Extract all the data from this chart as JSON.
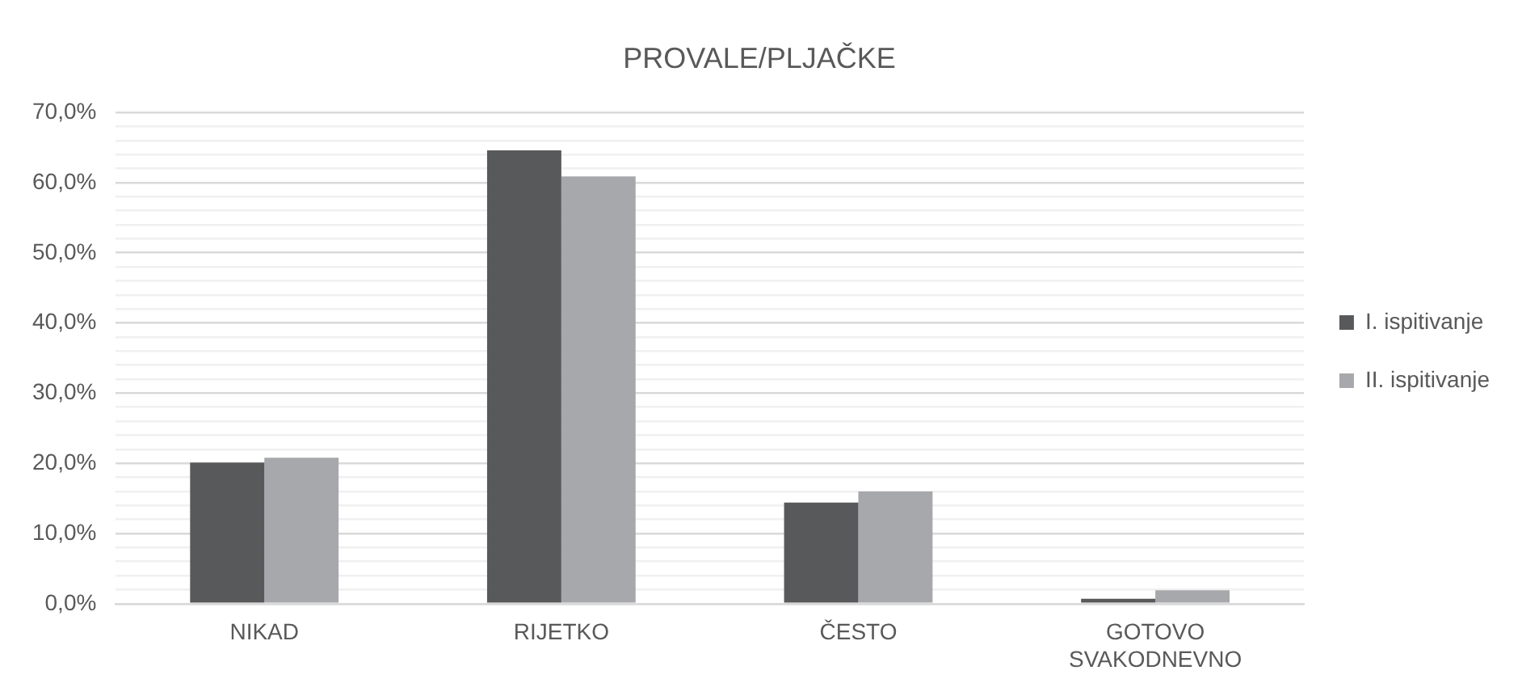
{
  "chart_data": {
    "type": "bar",
    "title": "PROVALE/PLJAČKE",
    "categories": [
      "NIKAD",
      "RIJETKO",
      "ČESTO",
      "GOTOVO SVAKODNEVNO"
    ],
    "series": [
      {
        "name": "I. ispitivanje",
        "color": "#58595b",
        "values": [
          20.1,
          64.6,
          14.4,
          0.7
        ]
      },
      {
        "name": "II. ispitivanje",
        "color": "#a7a8ab",
        "values": [
          20.8,
          60.9,
          16.0,
          1.9
        ]
      }
    ],
    "ylim": [
      0,
      70
    ],
    "yticks": [
      {
        "value": 0,
        "label": "0,0%"
      },
      {
        "value": 2,
        "label": null
      },
      {
        "value": 4,
        "label": null
      },
      {
        "value": 6,
        "label": null
      },
      {
        "value": 8,
        "label": null
      },
      {
        "value": 10,
        "label": "10,0%"
      },
      {
        "value": 12,
        "label": null
      },
      {
        "value": 14,
        "label": null
      },
      {
        "value": 16,
        "label": null
      },
      {
        "value": 18,
        "label": null
      },
      {
        "value": 20,
        "label": "20,0%"
      },
      {
        "value": 22,
        "label": null
      },
      {
        "value": 24,
        "label": null
      },
      {
        "value": 26,
        "label": null
      },
      {
        "value": 28,
        "label": null
      },
      {
        "value": 30,
        "label": "30,0%"
      },
      {
        "value": 32,
        "label": null
      },
      {
        "value": 34,
        "label": null
      },
      {
        "value": 36,
        "label": null
      },
      {
        "value": 38,
        "label": null
      },
      {
        "value": 40,
        "label": "40,0%"
      },
      {
        "value": 42,
        "label": null
      },
      {
        "value": 44,
        "label": null
      },
      {
        "value": 46,
        "label": null
      },
      {
        "value": 48,
        "label": null
      },
      {
        "value": 50,
        "label": "50,0%"
      },
      {
        "value": 52,
        "label": null
      },
      {
        "value": 54,
        "label": null
      },
      {
        "value": 56,
        "label": null
      },
      {
        "value": 58,
        "label": null
      },
      {
        "value": 60,
        "label": "60,0%"
      },
      {
        "value": 62,
        "label": null
      },
      {
        "value": 64,
        "label": null
      },
      {
        "value": 66,
        "label": null
      },
      {
        "value": 68,
        "label": null
      },
      {
        "value": 70,
        "label": "70,0%"
      }
    ],
    "grid": "y",
    "legend": "right"
  }
}
